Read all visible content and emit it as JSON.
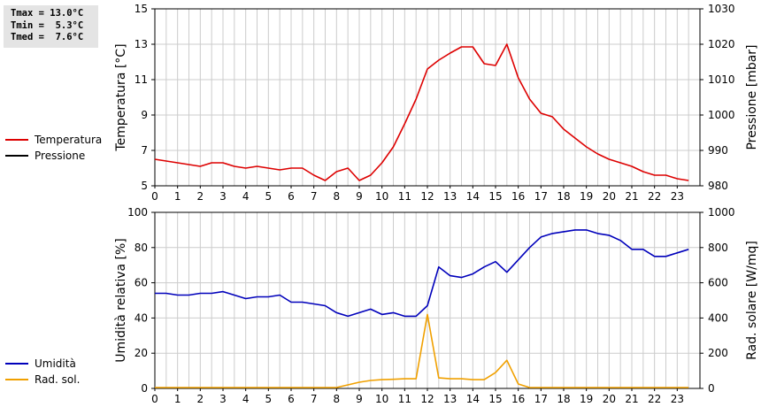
{
  "stats": {
    "tmax": "Tmax = 13.0°C",
    "tmin": "Tmin =  5.3°C",
    "tmed": "Tmed =  7.6°C"
  },
  "colors": {
    "temperatura": "#dd0000",
    "pressione": "#000000",
    "umidita": "#0000bb",
    "rad_sol": "#f0a000",
    "grid": "#cccccc"
  },
  "chart_data": [
    {
      "type": "line",
      "x_ticks": [
        "0",
        "1",
        "2",
        "3",
        "4",
        "5",
        "6",
        "7",
        "8",
        "9",
        "10",
        "11",
        "12",
        "13",
        "14",
        "15",
        "16",
        "17",
        "18",
        "19",
        "20",
        "21",
        "22",
        "23"
      ],
      "xlim": [
        0,
        24
      ],
      "ylabel": "Temperatura [°C]",
      "ylim": [
        5,
        15
      ],
      "y_ticks": [
        "5",
        "7",
        "9",
        "11",
        "13",
        "15"
      ],
      "ylabel_right": "Pressione [mbar]",
      "ylim_right": [
        980,
        1030
      ],
      "y_ticks_right": [
        "980",
        "990",
        "1000",
        "1010",
        "1020",
        "1030"
      ],
      "grid": true,
      "legend": [
        {
          "name": "Temperatura",
          "color_key": "temperatura"
        },
        {
          "name": "Pressione",
          "color_key": "pressione"
        }
      ],
      "series": [
        {
          "name": "Temperatura",
          "color_key": "temperatura",
          "axis": "left",
          "x": [
            0,
            0.5,
            1,
            1.5,
            2,
            2.5,
            3,
            3.5,
            4,
            4.5,
            5,
            5.5,
            6,
            6.5,
            7,
            7.5,
            8,
            8.5,
            9,
            9.5,
            10,
            10.5,
            11,
            11.5,
            12,
            12.5,
            13,
            13.5,
            14,
            14.5,
            15,
            15.5,
            16,
            16.5,
            17,
            17.5,
            18,
            18.5,
            19,
            19.5,
            20,
            20.5,
            21,
            21.5,
            22,
            22.5,
            23,
            23.5
          ],
          "y": [
            6.5,
            6.4,
            6.3,
            6.2,
            6.1,
            6.3,
            6.3,
            6.1,
            6.0,
            6.1,
            6.0,
            5.9,
            6.0,
            6.0,
            5.6,
            5.3,
            5.8,
            6.0,
            5.3,
            5.6,
            6.3,
            7.2,
            8.5,
            9.9,
            11.6,
            12.1,
            12.5,
            12.85,
            12.85,
            11.9,
            11.8,
            13.0,
            11.1,
            9.9,
            9.1,
            8.9,
            8.2,
            7.7,
            7.2,
            6.8,
            6.5,
            6.3,
            6.1,
            5.8,
            5.6,
            5.6,
            5.4,
            5.3
          ]
        }
      ]
    },
    {
      "type": "line",
      "x_ticks": [
        "0",
        "1",
        "2",
        "3",
        "4",
        "5",
        "6",
        "7",
        "8",
        "9",
        "10",
        "11",
        "12",
        "13",
        "14",
        "15",
        "16",
        "17",
        "18",
        "19",
        "20",
        "21",
        "22",
        "23"
      ],
      "xlim": [
        0,
        24
      ],
      "ylabel": "Umidità relativa [%]",
      "ylim": [
        0,
        100
      ],
      "y_ticks": [
        "0",
        "20",
        "40",
        "60",
        "80",
        "100"
      ],
      "ylabel_right": "Rad. solare [W/mq]",
      "ylim_right": [
        0,
        1000
      ],
      "y_ticks_right": [
        "0",
        "200",
        "400",
        "600",
        "800",
        "1000"
      ],
      "grid": true,
      "legend": [
        {
          "name": "Umidità",
          "color_key": "umidita"
        },
        {
          "name": "Rad. sol.",
          "color_key": "rad_sol"
        }
      ],
      "series": [
        {
          "name": "Umidità",
          "color_key": "umidita",
          "axis": "left",
          "x": [
            0,
            0.5,
            1,
            1.5,
            2,
            2.5,
            3,
            3.5,
            4,
            4.5,
            5,
            5.5,
            6,
            6.5,
            7,
            7.5,
            8,
            8.5,
            9,
            9.5,
            10,
            10.5,
            11,
            11.5,
            12,
            12.5,
            13,
            13.5,
            14,
            14.5,
            15,
            15.5,
            16,
            16.5,
            17,
            17.5,
            18,
            18.5,
            19,
            19.5,
            20,
            20.5,
            21,
            21.5,
            22,
            22.5,
            23,
            23.5
          ],
          "y": [
            54,
            54,
            53,
            53,
            54,
            54,
            55,
            53,
            51,
            52,
            52,
            53,
            49,
            49,
            48,
            47,
            43,
            41,
            43,
            45,
            42,
            43,
            41,
            41,
            47,
            69,
            64,
            63,
            65,
            69,
            72,
            66,
            73,
            80,
            86,
            88,
            89,
            90,
            90,
            88,
            87,
            84,
            79,
            79,
            75,
            75,
            77,
            79
          ]
        },
        {
          "name": "Rad. sol.",
          "color_key": "rad_sol",
          "axis": "right",
          "x": [
            0,
            0.5,
            1,
            1.5,
            2,
            2.5,
            3,
            3.5,
            4,
            4.5,
            5,
            5.5,
            6,
            6.5,
            7,
            7.5,
            8,
            8.5,
            9,
            9.5,
            10,
            10.5,
            11,
            11.5,
            12,
            12.5,
            13,
            13.5,
            14,
            14.5,
            15,
            15.5,
            16,
            16.5,
            17,
            17.5,
            18,
            18.5,
            19,
            19.5,
            20,
            20.5,
            21,
            21.5,
            22,
            22.5,
            23,
            23.5
          ],
          "y": [
            5,
            5,
            5,
            5,
            5,
            5,
            5,
            5,
            5,
            5,
            5,
            5,
            5,
            5,
            5,
            5,
            5,
            20,
            35,
            45,
            50,
            52,
            55,
            55,
            420,
            60,
            55,
            55,
            50,
            50,
            90,
            160,
            25,
            5,
            5,
            5,
            5,
            5,
            5,
            5,
            5,
            5,
            5,
            5,
            5,
            5,
            5,
            5
          ]
        }
      ]
    }
  ]
}
